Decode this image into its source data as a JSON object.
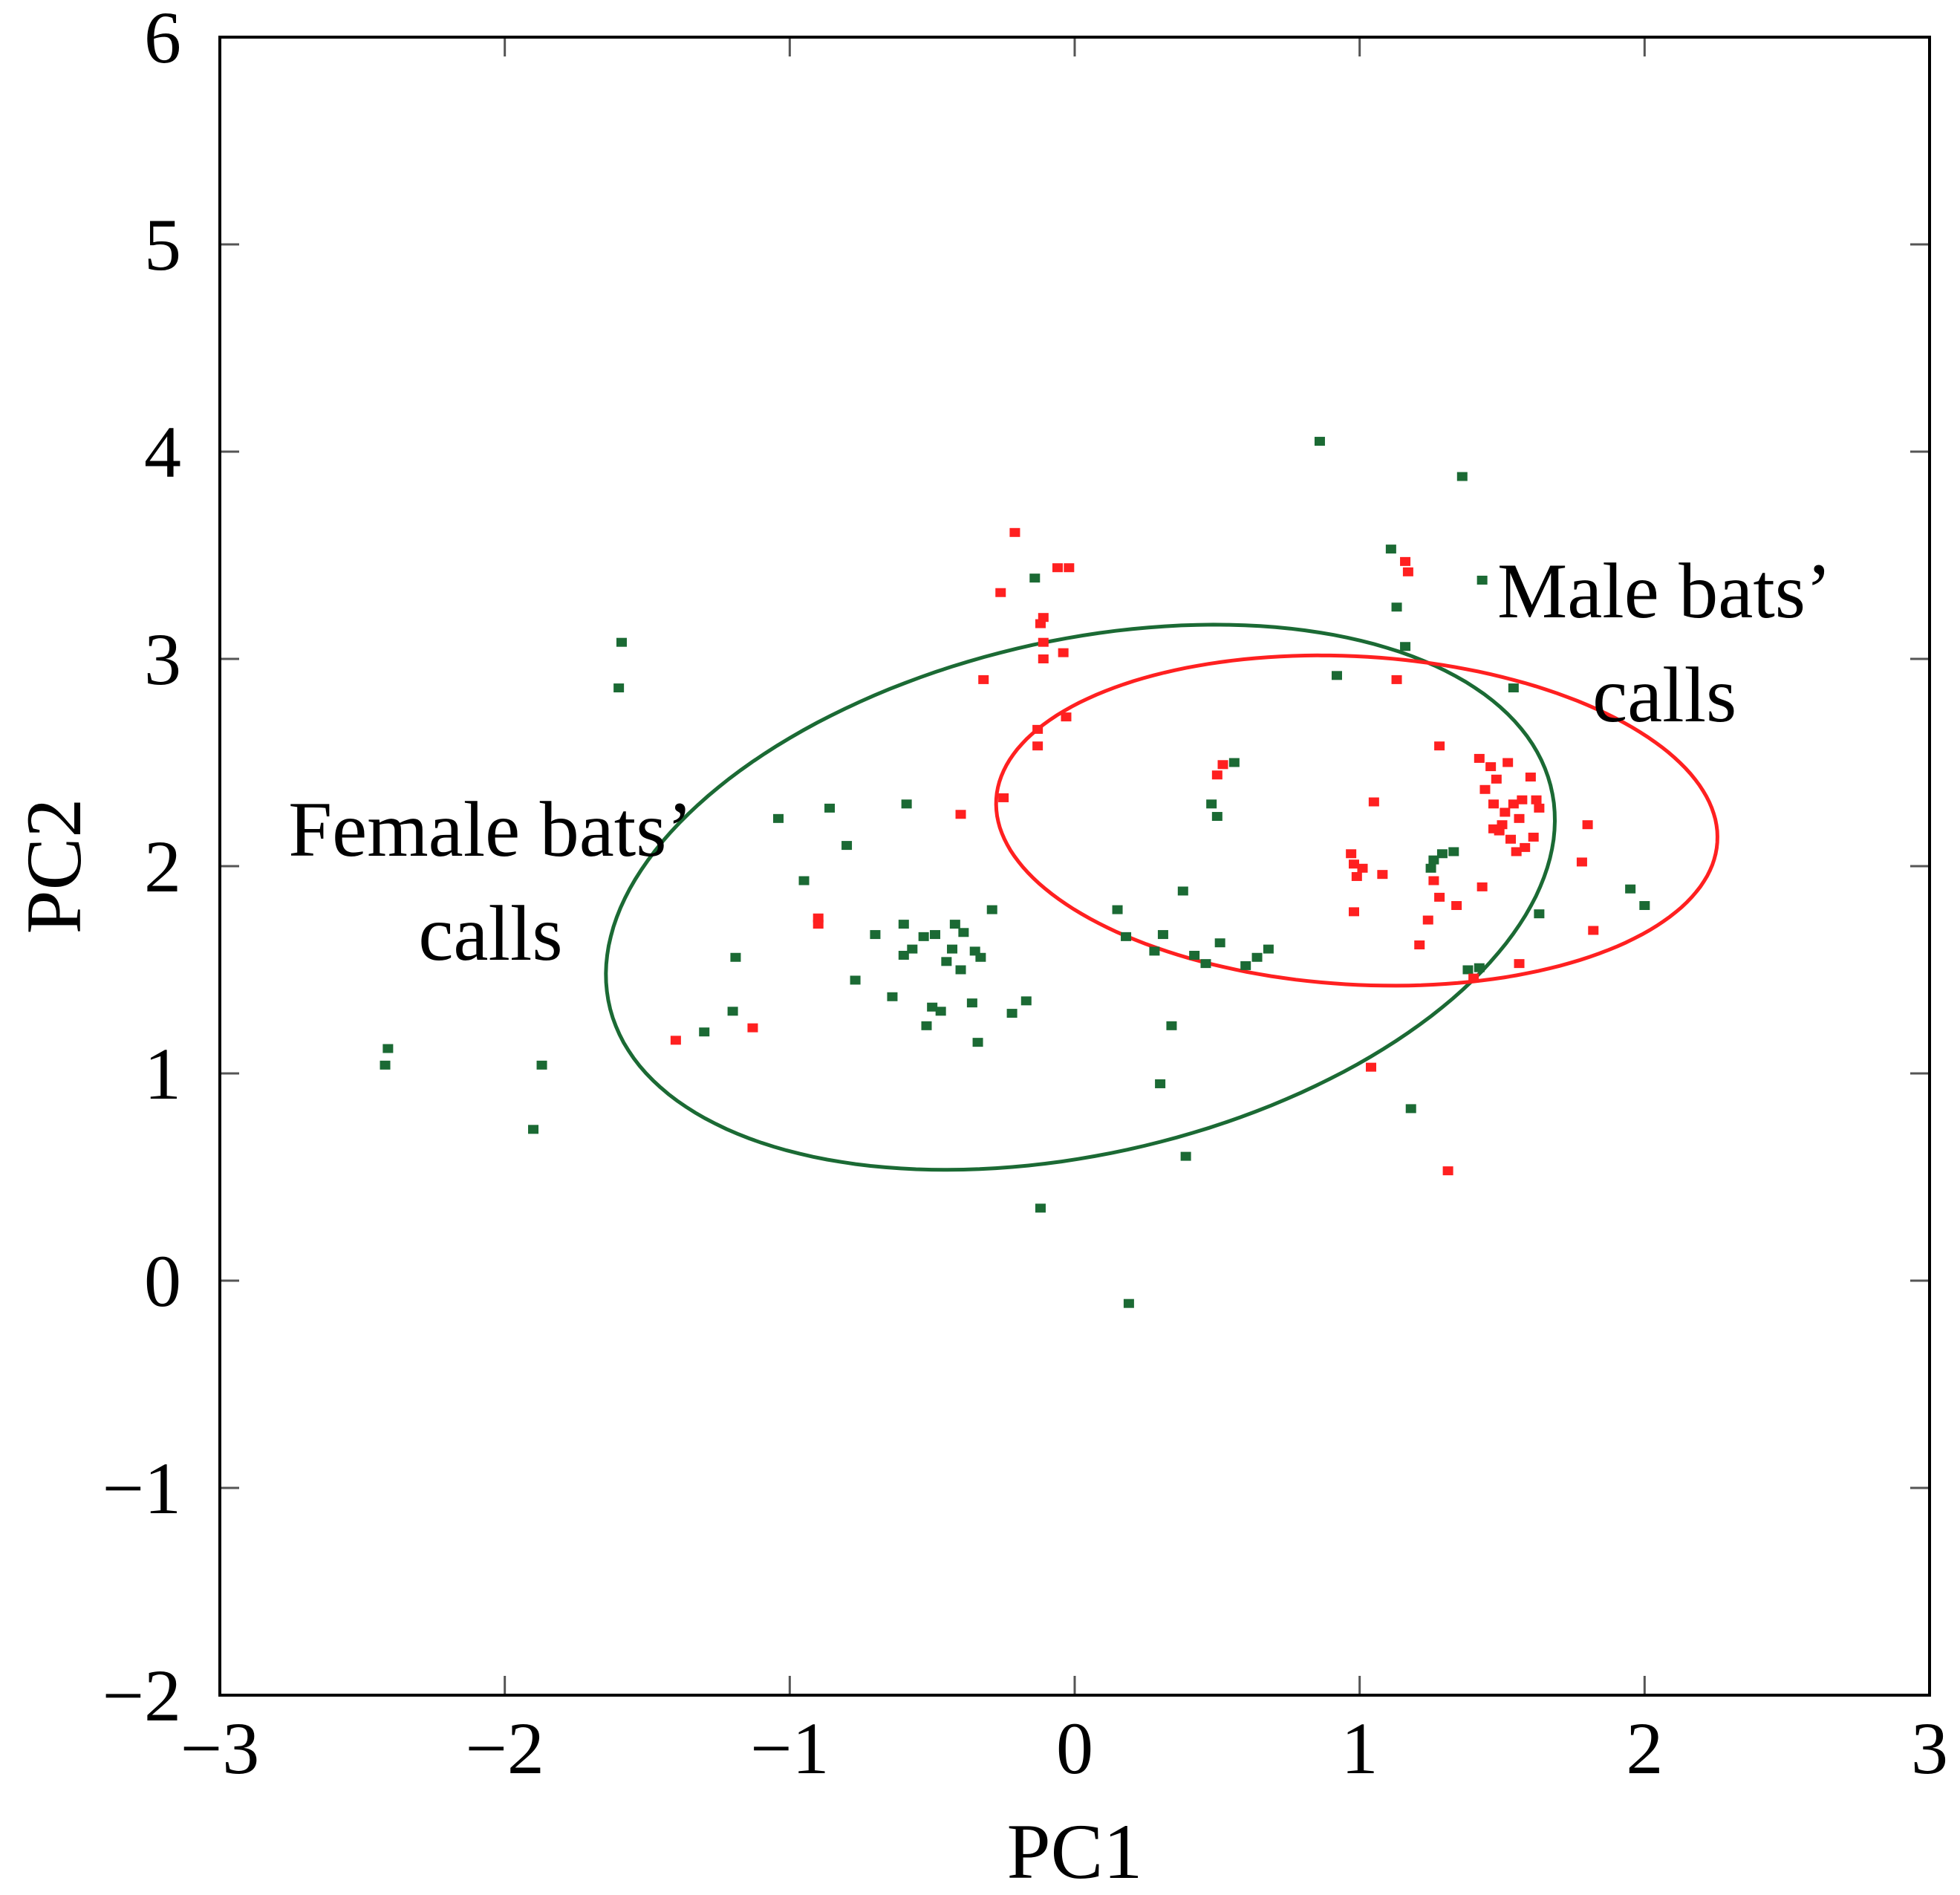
{
  "chart_data": {
    "type": "scatter",
    "title": "",
    "xlabel": "PC1",
    "ylabel": "PC2",
    "xlim": [
      -3,
      3
    ],
    "ylim": [
      -2,
      6
    ],
    "x_ticks": [
      -3,
      -2,
      -1,
      0,
      1,
      2,
      3
    ],
    "y_ticks": [
      -2,
      -1,
      0,
      1,
      2,
      3,
      4,
      5,
      6
    ],
    "x_tick_labels": [
      "−3",
      "−2",
      "−1",
      "0",
      "1",
      "2",
      "3"
    ],
    "y_tick_labels": [
      "−2",
      "−1",
      "0",
      "1",
      "2",
      "3",
      "4",
      "5",
      "6"
    ],
    "grid": false,
    "annotations": [
      {
        "lines": [
          "Female bats’",
          "calls"
        ],
        "x": -2.05,
        "y": 2.05,
        "color": "#000000"
      },
      {
        "lines": [
          "Male bats’",
          "calls"
        ],
        "x": 2.07,
        "y": 3.2,
        "color": "#000000"
      }
    ],
    "ellipses": [
      {
        "name": "Female bats’ calls",
        "color": "#1b6a34",
        "cx": 0.02,
        "cy": 1.85,
        "rx": 1.75,
        "ry": 1.2,
        "angle_deg": 25
      },
      {
        "name": "Male bats’ calls",
        "color": "#ff2020",
        "cx": 0.99,
        "cy": 2.22,
        "rx": 1.27,
        "ry": 0.79,
        "angle_deg": -6
      }
    ],
    "series": [
      {
        "name": "Female",
        "color": "#1b6a34",
        "points": [
          [
            -2.42,
            1.04
          ],
          [
            -2.41,
            1.12
          ],
          [
            -1.9,
            0.73
          ],
          [
            -1.87,
            1.04
          ],
          [
            -1.6,
            2.86
          ],
          [
            -1.59,
            3.08
          ],
          [
            -1.3,
            1.2
          ],
          [
            -1.2,
            1.3
          ],
          [
            -1.19,
            1.56
          ],
          [
            -1.04,
            2.23
          ],
          [
            -0.95,
            1.93
          ],
          [
            -0.86,
            2.28
          ],
          [
            -0.8,
            2.1
          ],
          [
            -0.77,
            1.45
          ],
          [
            -0.7,
            1.67
          ],
          [
            -0.64,
            1.37
          ],
          [
            -0.6,
            1.57
          ],
          [
            -0.6,
            1.72
          ],
          [
            -0.59,
            2.3
          ],
          [
            -0.57,
            1.6
          ],
          [
            -0.53,
            1.66
          ],
          [
            -0.52,
            1.23
          ],
          [
            -0.5,
            1.32
          ],
          [
            -0.49,
            1.67
          ],
          [
            -0.47,
            1.3
          ],
          [
            -0.45,
            1.54
          ],
          [
            -0.43,
            1.6
          ],
          [
            -0.42,
            1.72
          ],
          [
            -0.4,
            1.5
          ],
          [
            -0.39,
            1.68
          ],
          [
            -0.36,
            1.34
          ],
          [
            -0.35,
            1.59
          ],
          [
            -0.34,
            1.15
          ],
          [
            -0.33,
            1.56
          ],
          [
            -0.29,
            1.79
          ],
          [
            -0.22,
            1.29
          ],
          [
            -0.17,
            1.35
          ],
          [
            -0.14,
            3.39
          ],
          [
            -0.12,
            0.35
          ],
          [
            0.15,
            1.79
          ],
          [
            0.18,
            1.66
          ],
          [
            0.19,
            -0.11
          ],
          [
            0.28,
            1.59
          ],
          [
            0.3,
            0.95
          ],
          [
            0.31,
            1.67
          ],
          [
            0.34,
            1.23
          ],
          [
            0.38,
            1.88
          ],
          [
            0.39,
            0.6
          ],
          [
            0.42,
            1.57
          ],
          [
            0.46,
            1.53
          ],
          [
            0.48,
            2.3
          ],
          [
            0.5,
            2.24
          ],
          [
            0.51,
            1.63
          ],
          [
            0.56,
            2.5
          ],
          [
            0.6,
            1.52
          ],
          [
            0.64,
            1.56
          ],
          [
            0.68,
            1.6
          ],
          [
            0.86,
            4.05
          ],
          [
            0.92,
            2.92
          ],
          [
            1.11,
            3.53
          ],
          [
            1.13,
            3.25
          ],
          [
            1.16,
            3.06
          ],
          [
            1.18,
            0.83
          ],
          [
            1.25,
            1.99
          ],
          [
            1.26,
            2.03
          ],
          [
            1.29,
            2.06
          ],
          [
            1.33,
            2.07
          ],
          [
            1.36,
            3.88
          ],
          [
            1.38,
            1.5
          ],
          [
            1.42,
            1.51
          ],
          [
            1.43,
            3.38
          ],
          [
            1.54,
            2.86
          ],
          [
            1.63,
            1.77
          ],
          [
            1.95,
            1.89
          ],
          [
            2.0,
            1.81
          ]
        ]
      },
      {
        "name": "Male",
        "color": "#ff2020",
        "points": [
          [
            -1.4,
            1.16
          ],
          [
            -1.13,
            1.22
          ],
          [
            -0.9,
            1.75
          ],
          [
            -0.9,
            1.72
          ],
          [
            -0.4,
            2.25
          ],
          [
            -0.32,
            2.9
          ],
          [
            -0.25,
            2.33
          ],
          [
            -0.26,
            3.32
          ],
          [
            -0.21,
            3.61
          ],
          [
            -0.13,
            2.58
          ],
          [
            -0.13,
            2.66
          ],
          [
            -0.12,
            3.17
          ],
          [
            -0.11,
            3.08
          ],
          [
            -0.11,
            3.0
          ],
          [
            -0.11,
            3.2
          ],
          [
            -0.06,
            3.44
          ],
          [
            -0.04,
            3.03
          ],
          [
            -0.03,
            2.72
          ],
          [
            -0.02,
            3.44
          ],
          [
            0.5,
            2.44
          ],
          [
            0.52,
            2.49
          ],
          [
            0.97,
            2.06
          ],
          [
            0.98,
            2.01
          ],
          [
            0.98,
            1.78
          ],
          [
            0.99,
            1.95
          ],
          [
            1.01,
            1.99
          ],
          [
            1.04,
            1.03
          ],
          [
            1.05,
            2.31
          ],
          [
            1.08,
            1.96
          ],
          [
            1.13,
            2.9
          ],
          [
            1.16,
            3.47
          ],
          [
            1.17,
            3.42
          ],
          [
            1.21,
            1.62
          ],
          [
            1.24,
            1.74
          ],
          [
            1.26,
            1.93
          ],
          [
            1.28,
            2.58
          ],
          [
            1.28,
            1.85
          ],
          [
            1.31,
            0.53
          ],
          [
            1.34,
            1.81
          ],
          [
            1.4,
            1.46
          ],
          [
            1.42,
            2.52
          ],
          [
            1.43,
            1.9
          ],
          [
            1.44,
            2.37
          ],
          [
            1.46,
            2.48
          ],
          [
            1.47,
            2.3
          ],
          [
            1.47,
            2.18
          ],
          [
            1.48,
            2.42
          ],
          [
            1.49,
            2.17
          ],
          [
            1.5,
            2.2
          ],
          [
            1.51,
            2.26
          ],
          [
            1.52,
            2.5
          ],
          [
            1.53,
            2.13
          ],
          [
            1.54,
            2.3
          ],
          [
            1.55,
            2.07
          ],
          [
            1.56,
            2.23
          ],
          [
            1.56,
            1.53
          ],
          [
            1.57,
            2.32
          ],
          [
            1.58,
            2.09
          ],
          [
            1.6,
            2.43
          ],
          [
            1.61,
            2.14
          ],
          [
            1.62,
            2.32
          ],
          [
            1.63,
            2.28
          ],
          [
            1.78,
            2.02
          ],
          [
            1.8,
            2.2
          ],
          [
            1.82,
            1.69
          ]
        ]
      }
    ]
  }
}
